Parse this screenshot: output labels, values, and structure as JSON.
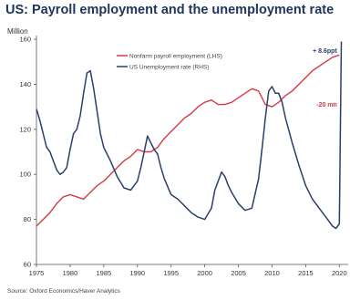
{
  "header": {
    "title": "US: Payroll employment and the unemployment rate",
    "unit": "Million",
    "source": "Source: Oxford Economics/Haver Analytics"
  },
  "colors": {
    "title": "#20355e",
    "payroll": "#d43a44",
    "unemployment": "#2a3f6a",
    "annotation_up": "#2a3f6a",
    "annotation_down": "#d43a44"
  },
  "chart_data": {
    "type": "line",
    "title": "US: Payroll employment and the unemployment rate",
    "ylabel": "Million",
    "xlim": [
      1975,
      2020.5
    ],
    "ylim": [
      60,
      160
    ],
    "yticks": [
      60,
      80,
      100,
      120,
      140,
      160
    ],
    "xticks": [
      "1975",
      "1980",
      "1985",
      "1990",
      "1995",
      "2000",
      "2005",
      "2010",
      "2015",
      "2020"
    ],
    "grid": false,
    "legend": "top-center",
    "series": [
      {
        "name": "Nonfarm payroll employment (LHS)",
        "axis": "left",
        "x": [
          1975,
          1976,
          1977,
          1978,
          1979,
          1980,
          1981,
          1982,
          1983,
          1984,
          1985,
          1986,
          1987,
          1988,
          1989,
          1990,
          1991,
          1992,
          1993,
          1994,
          1995,
          1996,
          1997,
          1998,
          1999,
          2000,
          2001,
          2002,
          2003,
          2004,
          2005,
          2006,
          2007,
          2008,
          2009,
          2010,
          2011,
          2012,
          2013,
          2014,
          2015,
          2016,
          2017,
          2018,
          2019,
          2020
        ],
        "values": [
          77,
          80,
          83,
          87,
          90,
          91,
          90,
          89,
          92,
          95,
          97,
          100,
          103,
          106,
          108,
          111,
          110,
          110,
          112,
          116,
          119,
          122,
          125,
          127,
          130,
          132,
          133,
          131,
          131,
          132,
          134,
          136,
          138,
          137,
          131,
          130,
          132,
          135,
          137,
          140,
          143,
          146,
          148,
          150,
          152,
          153
        ]
      },
      {
        "name": "US Unemployment rate (RHS)",
        "axis": "left-scaled",
        "x": [
          1975,
          1975.5,
          1976,
          1976.5,
          1977,
          1977.5,
          1978,
          1978.5,
          1979,
          1979.5,
          1980,
          1980.5,
          1981,
          1981.5,
          1982,
          1982.5,
          1983,
          1983.5,
          1984,
          1984.5,
          1985,
          1986,
          1987,
          1988,
          1989,
          1990,
          1990.5,
          1991,
          1991.5,
          1992,
          1992.5,
          1993,
          1993.5,
          1994,
          1995,
          1996,
          1997,
          1998,
          1999,
          2000,
          2001,
          2001.5,
          2002,
          2002.5,
          2003,
          2003.5,
          2004,
          2005,
          2006,
          2007,
          2008,
          2008.5,
          2009,
          2009.5,
          2010,
          2010.5,
          2011,
          2011.5,
          2012,
          2013,
          2014,
          2015,
          2016,
          2017,
          2018,
          2019,
          2019.5,
          2020,
          2020.3
        ],
        "values": [
          129,
          124,
          118,
          112,
          110,
          106,
          102,
          100,
          101,
          103,
          111,
          118,
          120,
          126,
          136,
          145,
          146,
          138,
          128,
          118,
          112,
          106,
          99,
          94,
          93,
          97,
          103,
          110,
          117,
          114,
          111,
          109,
          103,
          98,
          91,
          89,
          86,
          83,
          81,
          80,
          85,
          93,
          97,
          101,
          99,
          95,
          92,
          87,
          84,
          85,
          98,
          111,
          125,
          137,
          139,
          136,
          136,
          132,
          125,
          114,
          104,
          95,
          89,
          85,
          81,
          77,
          76,
          78,
          159
        ]
      }
    ],
    "annotations": [
      {
        "text": "+ 8.6ppt",
        "x": 2020.2,
        "y": 155,
        "series": "US Unemployment rate (RHS)"
      },
      {
        "text": "-20 mn",
        "x": 2020.2,
        "y": 131,
        "series": "Nonfarm payroll employment (LHS)"
      }
    ]
  }
}
